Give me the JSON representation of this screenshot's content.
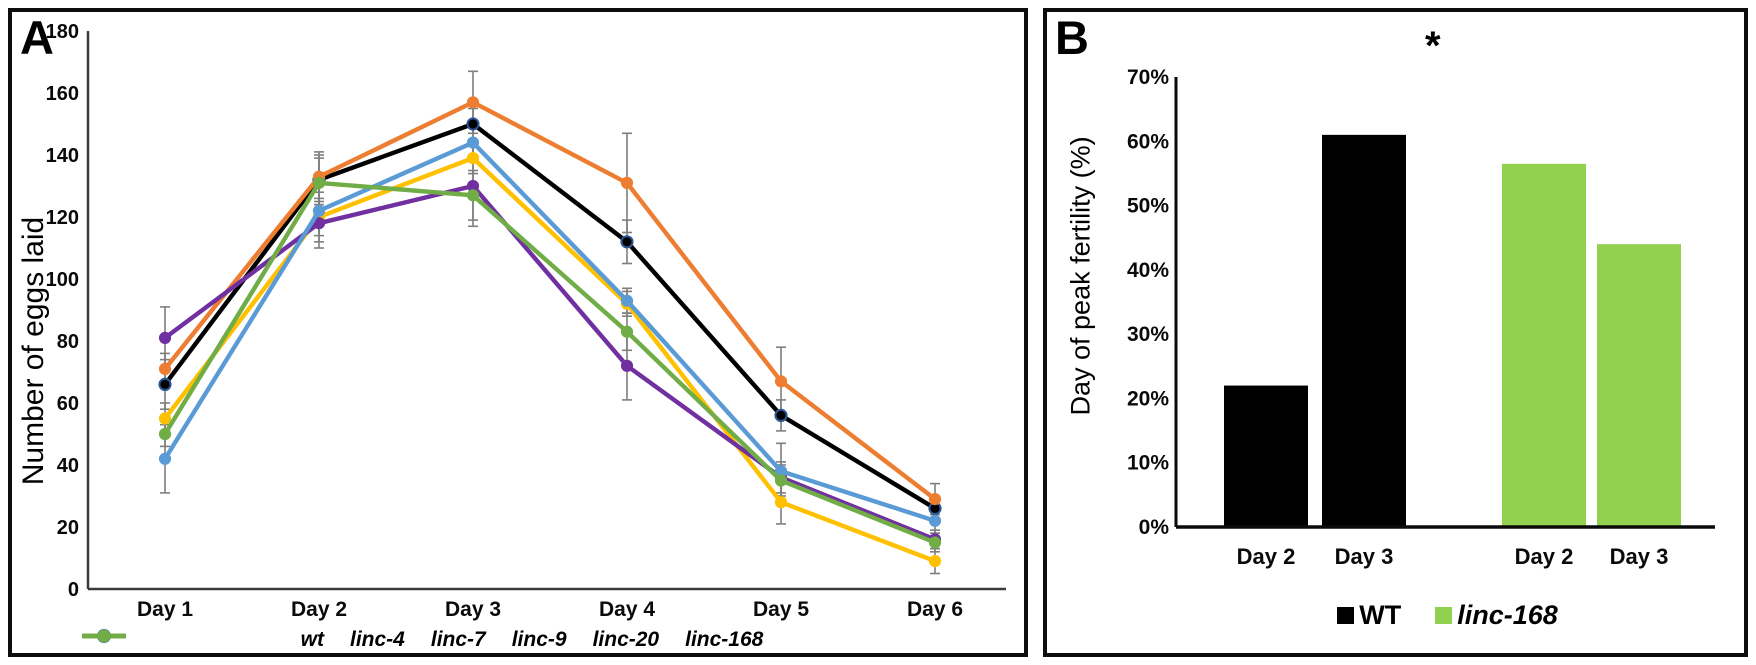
{
  "figure": {
    "panel_a": {
      "label": "A",
      "ylabel": "Number of eggs laid"
    },
    "panel_b": {
      "label": "B",
      "ylabel": "Day of peak fertility (%)",
      "significance_marker": "*"
    }
  },
  "chart_data": [
    {
      "id": "panel_a",
      "type": "line",
      "ylabel": "Number of eggs laid",
      "categories": [
        "Day 1",
        "Day 2",
        "Day 3",
        "Day 4",
        "Day 5",
        "Day 6"
      ],
      "ylim": [
        0,
        180
      ],
      "ytick_step": 20,
      "ytick_labels": [
        "0",
        "20",
        "40",
        "60",
        "80",
        "100",
        "120",
        "140",
        "160",
        "180"
      ],
      "grid": false,
      "legend_position": "bottom",
      "error_bar_color": "#7f7f7f",
      "series": [
        {
          "name": "wt",
          "color": "#000000",
          "marker_border": "#2e5796",
          "values": [
            66,
            132,
            150,
            112,
            56,
            26
          ],
          "errors": [
            8,
            8,
            5,
            7,
            5,
            4
          ]
        },
        {
          "name": "linc-4",
          "color": "#ED7D31",
          "values": [
            71,
            133,
            157,
            131,
            67,
            29
          ],
          "errors": [
            5,
            8,
            10,
            16,
            11,
            5
          ]
        },
        {
          "name": "linc-7",
          "color": "#FFC000",
          "values": [
            55,
            120,
            139,
            92,
            28,
            9
          ],
          "errors": [
            5,
            8,
            5,
            4,
            7,
            4
          ]
        },
        {
          "name": "linc-9",
          "color": "#7030A0",
          "values": [
            81,
            118,
            130,
            72,
            36,
            16
          ],
          "errors": [
            10,
            8,
            13,
            11,
            5,
            3
          ]
        },
        {
          "name": "linc-20",
          "color": "#5B9BD5",
          "values": [
            42,
            122,
            144,
            93,
            38,
            22
          ],
          "errors": [
            11,
            8,
            5,
            4,
            9,
            4
          ]
        },
        {
          "name": "linc-168",
          "color": "#70AD47",
          "values": [
            50,
            131,
            127,
            83,
            35,
            15
          ],
          "errors": [
            4,
            8,
            8,
            6,
            5,
            3
          ]
        }
      ]
    },
    {
      "id": "panel_b",
      "type": "bar",
      "ylabel": "Day of peak fertility (%)",
      "categories": [
        "Day 2",
        "Day 3",
        "Day 2",
        "Day 3"
      ],
      "values": [
        22,
        61,
        56.5,
        44
      ],
      "bar_colors": [
        "#000000",
        "#000000",
        "#92D050",
        "#92D050"
      ],
      "ylim": [
        0,
        70
      ],
      "ytick_step": 10,
      "ytick_labels": [
        "0%",
        "10%",
        "20%",
        "30%",
        "40%",
        "50%",
        "60%",
        "70%"
      ],
      "grid": false,
      "annotation": "*",
      "legend_position": "bottom",
      "groups": [
        {
          "name": "WT",
          "color": "#000000",
          "values": {
            "Day 2": 22,
            "Day 3": 61
          }
        },
        {
          "name": "linc-168",
          "color": "#92D050",
          "values": {
            "Day 2": 56.5,
            "Day 3": 44
          }
        }
      ]
    }
  ]
}
